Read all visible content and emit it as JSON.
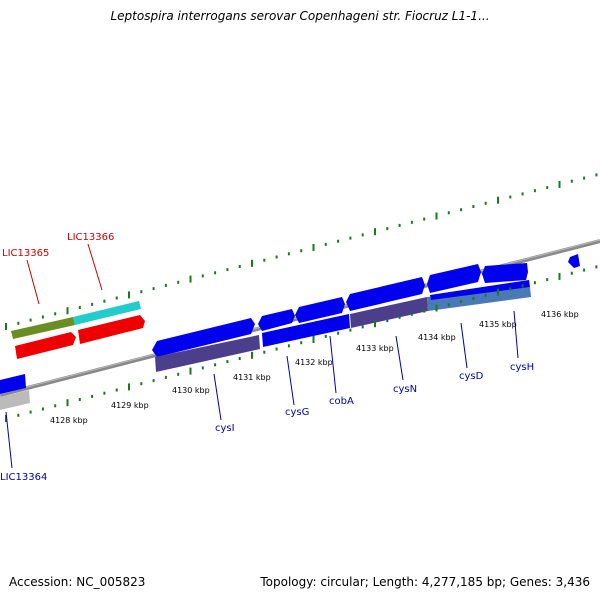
{
  "title": "Leptospira interrogans serovar Copenhageni str. Fiocruz L1-1...",
  "accession": "Accession: NC_005823",
  "summary": "Topology: circular; Length: 4,277,185 bp; Genes: 3,436",
  "ruler_labels": [
    "4128 kbp",
    "4129 kbp",
    "4130 kbp",
    "4131 kbp",
    "4132 kbp",
    "4133 kbp",
    "4134 kbp",
    "4135 kbp",
    "4136 kbp"
  ],
  "gene_labels": [
    "LIC13364",
    "LIC13365",
    "LIC13366",
    "cysI",
    "cysG",
    "cobA",
    "cysN",
    "cysD",
    "cysH"
  ],
  "colors": {
    "forward_gene": "#0000ee",
    "cds_dark": "#4b3f8c",
    "red_gene": "#ee0000",
    "olive_gene": "#6b8e23",
    "cyan_gene": "#22cccc",
    "grey_gene": "#bbbbbb",
    "tick_green": "#1a7a1a",
    "label_red": "#cc0000",
    "label_blue": "#0000aa"
  }
}
